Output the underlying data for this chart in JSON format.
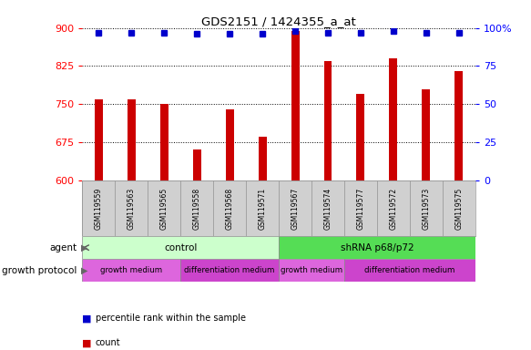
{
  "title": "GDS2151 / 1424355_a_at",
  "samples": [
    "GSM119559",
    "GSM119563",
    "GSM119565",
    "GSM119558",
    "GSM119568",
    "GSM119571",
    "GSM119567",
    "GSM119574",
    "GSM119577",
    "GSM119572",
    "GSM119573",
    "GSM119575"
  ],
  "counts": [
    760,
    760,
    750,
    660,
    740,
    685,
    895,
    835,
    770,
    840,
    780,
    815
  ],
  "percentiles": [
    97,
    97,
    97,
    96,
    96,
    96,
    98,
    97,
    97,
    98,
    97,
    97
  ],
  "ylim_left": [
    600,
    900
  ],
  "yticks_left": [
    600,
    675,
    750,
    825,
    900
  ],
  "ylim_right": [
    0,
    100
  ],
  "yticks_right": [
    0,
    25,
    50,
    75,
    100
  ],
  "bar_color": "#cc0000",
  "dot_color": "#0000cc",
  "agent_control_color": "#ccffcc",
  "agent_shrna_color": "#55dd55",
  "growth_medium_color": "#dd66dd",
  "diff_medium_color": "#cc44cc",
  "bar_width": 0.25
}
